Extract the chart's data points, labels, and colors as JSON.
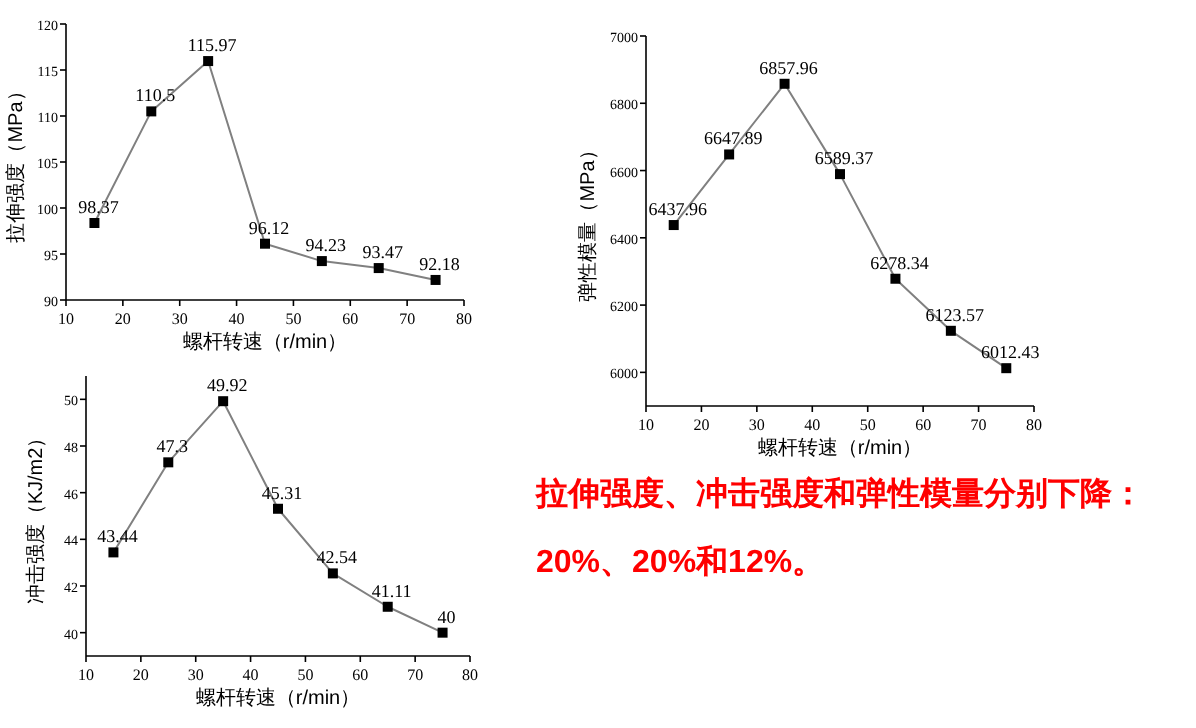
{
  "chart_data": [
    {
      "type": "line",
      "xlabel": "螺杆转速（r/min）",
      "ylabel": "拉伸强度（MPa）",
      "x": [
        15,
        25,
        35,
        45,
        55,
        65,
        75
      ],
      "series": [
        {
          "color": "#808080",
          "values": [
            98.37,
            110.5,
            115.97,
            96.12,
            94.23,
            93.47,
            92.18
          ]
        }
      ],
      "xlim": [
        10,
        80
      ],
      "xticks": [
        10,
        20,
        30,
        40,
        50,
        60,
        70,
        80
      ],
      "ylim": [
        90,
        120
      ],
      "yticks": [
        90,
        95,
        100,
        105,
        110,
        115,
        120
      ],
      "data_labels": true,
      "marker": "square",
      "line_style": "solid"
    },
    {
      "type": "line",
      "xlabel": "螺杆转速（r/min）",
      "ylabel": "弹性模量（MPa）",
      "x": [
        15,
        25,
        35,
        45,
        55,
        65,
        75
      ],
      "series": [
        {
          "color": "#808080",
          "values": [
            6437.96,
            6647.89,
            6857.96,
            6589.37,
            6278.34,
            6123.57,
            6012.43
          ]
        }
      ],
      "xlim": [
        10,
        80
      ],
      "xticks": [
        10,
        20,
        30,
        40,
        50,
        60,
        70,
        80
      ],
      "ylim": [
        5900,
        7000
      ],
      "yticks": [
        6000,
        6200,
        6400,
        6600,
        6800,
        7000
      ],
      "data_labels": true,
      "marker": "square",
      "line_style": "solid"
    },
    {
      "type": "line",
      "xlabel": "螺杆转速（r/min）",
      "ylabel": "冲击强度（KJ/m2）",
      "x": [
        15,
        25,
        35,
        45,
        55,
        65,
        75
      ],
      "series": [
        {
          "color": "#808080",
          "values": [
            43.44,
            47.3,
            49.92,
            45.31,
            42.54,
            41.11,
            40
          ]
        }
      ],
      "xlim": [
        10,
        80
      ],
      "xticks": [
        10,
        20,
        30,
        40,
        50,
        60,
        70,
        80
      ],
      "ylim": [
        39,
        51
      ],
      "yticks": [
        40,
        42,
        44,
        46,
        48,
        50
      ],
      "data_labels": true,
      "marker": "square",
      "line_style": "solid"
    },
    {
      "type": "other",
      "annotations": [
        "拉伸强度、冲击强度和弹性模量分别下降：",
        "20%、20%和12%。"
      ]
    }
  ]
}
